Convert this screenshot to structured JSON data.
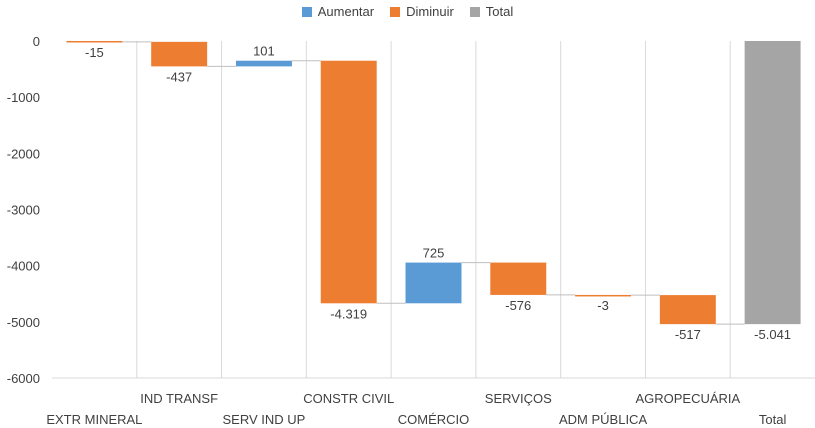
{
  "chart_data": {
    "type": "waterfall",
    "legend": [
      {
        "label": "Aumentar",
        "color": "#5B9BD5"
      },
      {
        "label": "Diminuir",
        "color": "#ED7D31"
      },
      {
        "label": "Total",
        "color": "#A5A5A5"
      }
    ],
    "categories": [
      "EXTR MINERAL",
      "IND TRANSF",
      "SERV IND UP",
      "CONSTR CIVIL",
      "COMÉRCIO",
      "SERVIÇOS",
      "ADM PÚBLICA",
      "AGROPECUÁRIA",
      "Total"
    ],
    "values": [
      -15,
      -437,
      101,
      -4319,
      725,
      -576,
      -3,
      -517,
      -5041
    ],
    "kinds": [
      "decrease",
      "decrease",
      "increase",
      "decrease",
      "increase",
      "decrease",
      "decrease",
      "decrease",
      "total"
    ],
    "data_labels": [
      "-15",
      "-437",
      "101",
      "-4.319",
      "725",
      "-576",
      "-3",
      "-517",
      "-5.041"
    ],
    "ylim": [
      -6000,
      0
    ],
    "y_ticks": [
      0,
      -1000,
      -2000,
      -3000,
      -4000,
      -5000,
      -6000
    ],
    "y_tick_labels": [
      "0",
      "-1000",
      "-2000",
      "-3000",
      "-4000",
      "-5000",
      "-6000"
    ],
    "colors": {
      "increase": "#5B9BD5",
      "decrease": "#ED7D31",
      "total": "#A5A5A5",
      "axis": "#D9D9D9",
      "connector": "#BFBFBF"
    }
  }
}
